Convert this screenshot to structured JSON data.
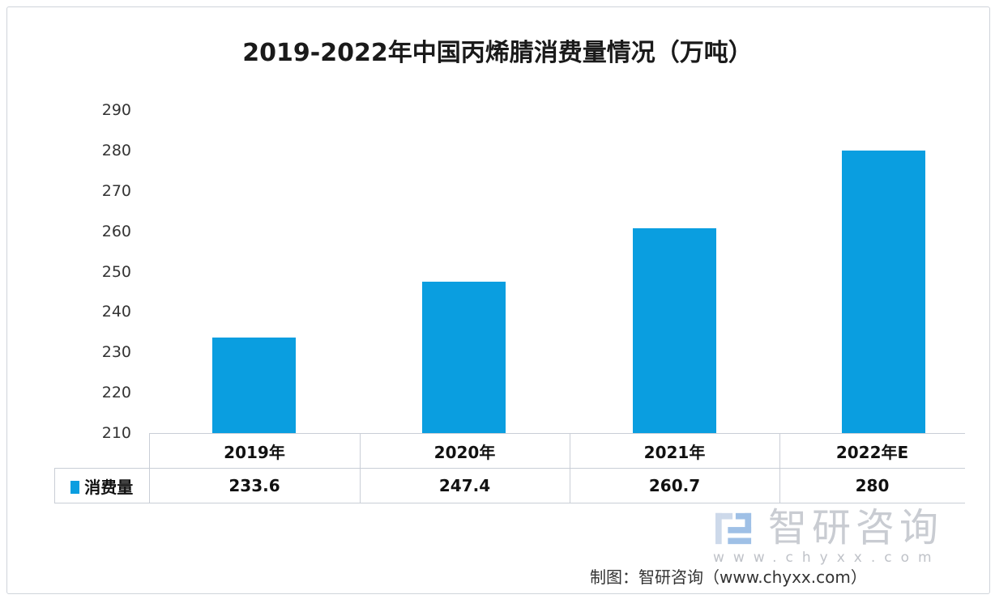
{
  "chart_data": {
    "type": "bar",
    "title": "2019-2022年中国丙烯腈消费量情况（万吨）",
    "categories": [
      "2019年",
      "2020年",
      "2021年",
      "2022年E"
    ],
    "series": [
      {
        "name": "消费量",
        "values": [
          233.6,
          247.4,
          260.7,
          280
        ],
        "color": "#0a9ee0"
      }
    ],
    "yticks": [
      "210",
      "220",
      "230",
      "240",
      "250",
      "260",
      "270",
      "280",
      "290"
    ],
    "ylim": [
      210,
      290
    ],
    "grid": false,
    "legend": "data-table",
    "data_table": true
  },
  "watermark": {
    "brand": "智研咨询",
    "url": "www.chyxx.com"
  },
  "source": "制图：智研咨询（www.chyxx.com）"
}
